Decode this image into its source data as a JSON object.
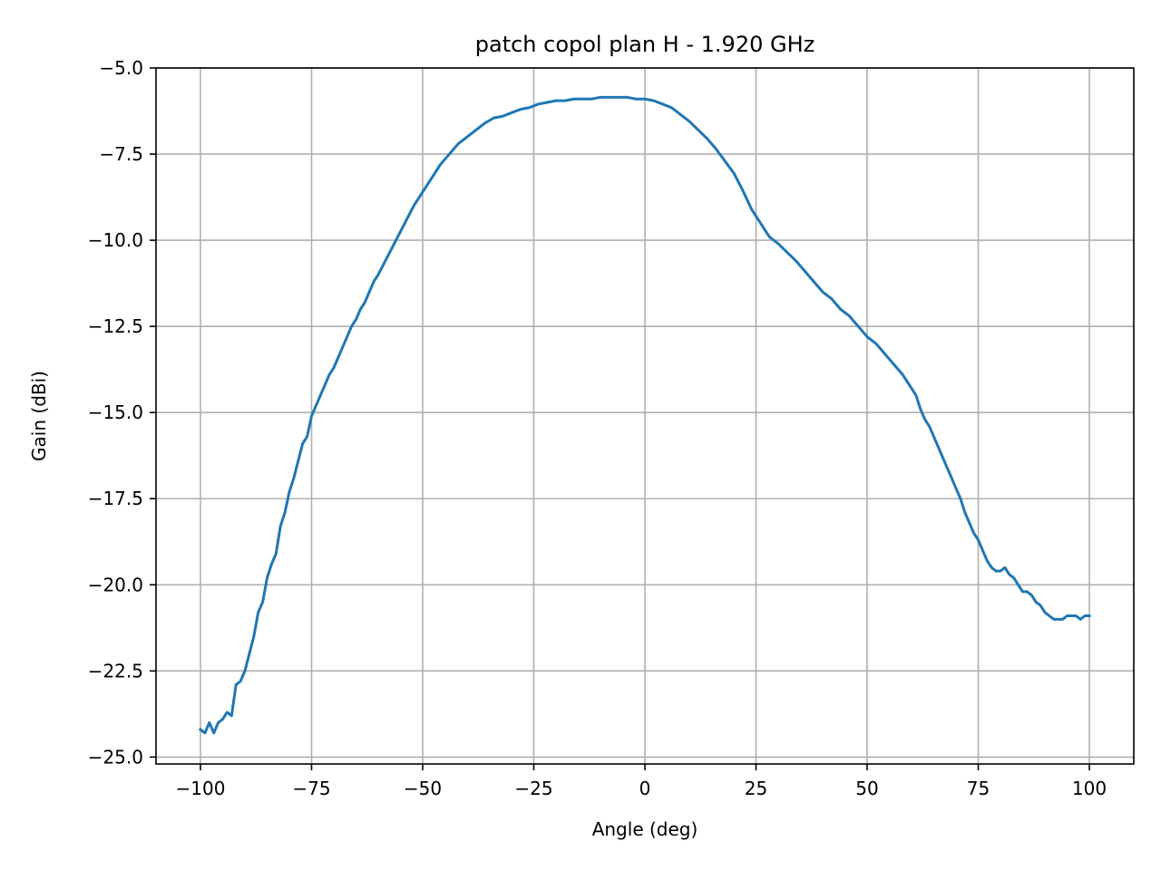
{
  "chart_data": {
    "type": "line",
    "title": "patch copol plan H - 1.920 GHz",
    "xlabel": "Angle (deg)",
    "ylabel": "Gain (dBi)",
    "xlim": [
      -110,
      110
    ],
    "ylim": [
      -25.2,
      -5.0
    ],
    "grid": true,
    "line_color": "#1f77b4",
    "grid_color": "#b0b0b0",
    "x_ticks": [
      -100,
      -75,
      -50,
      -25,
      0,
      25,
      50,
      75,
      100
    ],
    "x_tick_labels": [
      "−100",
      "−75",
      "−50",
      "−25",
      "0",
      "25",
      "50",
      "75",
      "100"
    ],
    "y_ticks": [
      -5.0,
      -7.5,
      -10.0,
      -12.5,
      -15.0,
      -17.5,
      -20.0,
      -22.5,
      -25.0
    ],
    "y_tick_labels": [
      "−5.0",
      "−7.5",
      "−10.0",
      "−12.5",
      "−15.0",
      "−17.5",
      "−20.0",
      "−22.5",
      "−25.0"
    ],
    "series": [
      {
        "x": [
          -100,
          -99,
          -98,
          -97,
          -96,
          -95,
          -94,
          -93,
          -92,
          -91,
          -90,
          -89,
          -88,
          -87,
          -86,
          -85,
          -84,
          -83,
          -82,
          -81,
          -80,
          -79,
          -78,
          -77,
          -76,
          -75,
          -74,
          -73,
          -72,
          -71,
          -70,
          -69,
          -68,
          -67,
          -66,
          -65,
          -64,
          -63,
          -62,
          -61,
          -60,
          -58,
          -56,
          -54,
          -52,
          -50,
          -48,
          -46,
          -44,
          -42,
          -40,
          -38,
          -36,
          -34,
          -32,
          -30,
          -28,
          -26,
          -24,
          -22,
          -20,
          -18,
          -16,
          -14,
          -12,
          -10,
          -8,
          -6,
          -4,
          -2,
          0,
          2,
          4,
          6,
          8,
          10,
          12,
          14,
          16,
          18,
          20,
          22,
          24,
          26,
          28,
          30,
          32,
          34,
          36,
          38,
          40,
          42,
          44,
          46,
          48,
          50,
          52,
          54,
          56,
          58,
          60,
          61,
          62,
          63,
          64,
          65,
          66,
          67,
          68,
          69,
          70,
          71,
          72,
          73,
          74,
          75,
          76,
          77,
          78,
          79,
          80,
          81,
          82,
          83,
          84,
          85,
          86,
          87,
          88,
          89,
          90,
          91,
          92,
          93,
          94,
          95,
          96,
          97,
          98,
          99,
          100
        ],
        "y": [
          -24.2,
          -24.3,
          -24.0,
          -24.3,
          -24.0,
          -23.9,
          -23.7,
          -23.8,
          -22.9,
          -22.8,
          -22.5,
          -22.0,
          -21.5,
          -20.8,
          -20.5,
          -19.8,
          -19.4,
          -19.1,
          -18.3,
          -17.9,
          -17.3,
          -16.9,
          -16.4,
          -15.9,
          -15.7,
          -15.1,
          -14.8,
          -14.5,
          -14.2,
          -13.9,
          -13.7,
          -13.4,
          -13.1,
          -12.8,
          -12.5,
          -12.3,
          -12.0,
          -11.8,
          -11.5,
          -11.2,
          -11.0,
          -10.5,
          -10.0,
          -9.5,
          -9.0,
          -8.6,
          -8.2,
          -7.8,
          -7.5,
          -7.2,
          -7.0,
          -6.8,
          -6.6,
          -6.45,
          -6.4,
          -6.3,
          -6.2,
          -6.15,
          -6.05,
          -6.0,
          -5.95,
          -5.95,
          -5.9,
          -5.9,
          -5.9,
          -5.85,
          -5.85,
          -5.85,
          -5.85,
          -5.9,
          -5.9,
          -5.95,
          -6.05,
          -6.15,
          -6.35,
          -6.55,
          -6.8,
          -7.05,
          -7.35,
          -7.7,
          -8.05,
          -8.55,
          -9.1,
          -9.5,
          -9.9,
          -10.1,
          -10.35,
          -10.6,
          -10.9,
          -11.2,
          -11.5,
          -11.7,
          -12.0,
          -12.2,
          -12.5,
          -12.8,
          -13.0,
          -13.3,
          -13.6,
          -13.9,
          -14.3,
          -14.5,
          -14.9,
          -15.2,
          -15.4,
          -15.7,
          -16.0,
          -16.3,
          -16.6,
          -16.9,
          -17.2,
          -17.5,
          -17.9,
          -18.2,
          -18.5,
          -18.7,
          -19.0,
          -19.3,
          -19.5,
          -19.6,
          -19.6,
          -19.5,
          -19.7,
          -19.8,
          -20.0,
          -20.2,
          -20.2,
          -20.3,
          -20.5,
          -20.6,
          -20.8,
          -20.9,
          -21.0,
          -21.0,
          -21.0,
          -20.9,
          -20.9,
          -20.9,
          -21.0,
          -20.9,
          -20.9
        ],
        "y_shape_note": ""
      }
    ]
  }
}
